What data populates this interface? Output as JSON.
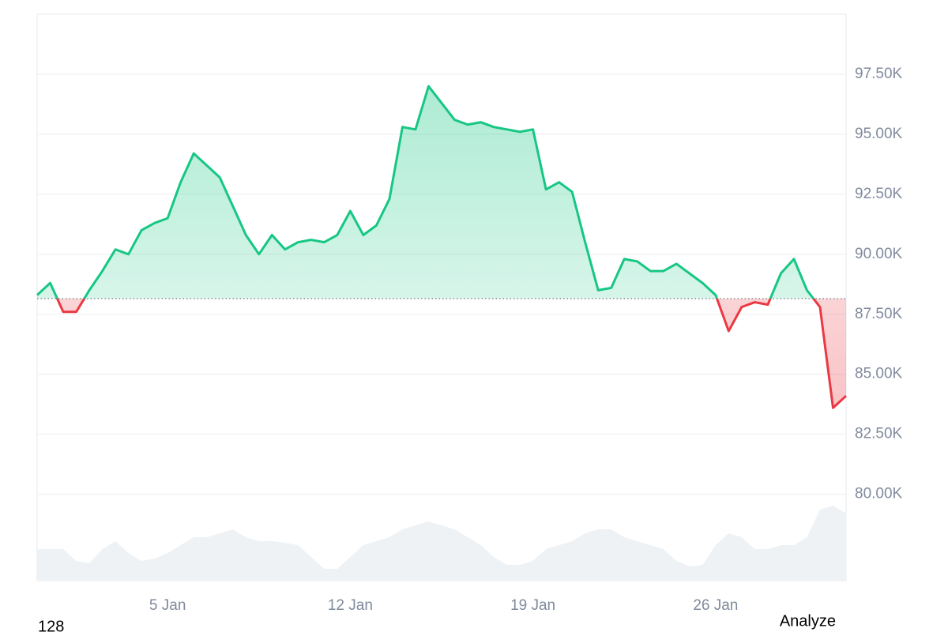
{
  "chart_data": {
    "type": "line",
    "categories": [
      null,
      null,
      null,
      null,
      null,
      null,
      null,
      null,
      null,
      null,
      "5 Jan",
      null,
      null,
      null,
      null,
      null,
      null,
      null,
      null,
      null,
      null,
      null,
      null,
      null,
      "12 Jan",
      null,
      null,
      null,
      null,
      null,
      null,
      null,
      null,
      null,
      null,
      null,
      null,
      null,
      "19 Jan",
      null,
      null,
      null,
      null,
      null,
      null,
      null,
      null,
      null,
      null,
      null,
      null,
      null,
      "26 Jan",
      null,
      null,
      null,
      null,
      null,
      null,
      null,
      null,
      null,
      null
    ],
    "series": [
      {
        "name": "Price",
        "color": "#16c784",
        "negative_color": "#ea3943",
        "values": [
          88300,
          88800,
          87600,
          87600,
          88500,
          89300,
          90200,
          90000,
          91000,
          91300,
          91500,
          93000,
          94200,
          93700,
          93200,
          92000,
          90800,
          90000,
          90800,
          90200,
          90500,
          90600,
          90500,
          90800,
          91800,
          90800,
          91200,
          92300,
          95300,
          95200,
          97000,
          96300,
          95600,
          95400,
          95500,
          95300,
          95200,
          95100,
          95200,
          92700,
          93000,
          92600,
          90500,
          88500,
          88600,
          89800,
          89700,
          89300,
          89300,
          89600,
          89200,
          88800,
          88300,
          86800,
          87800,
          88000,
          87900,
          89200,
          89800,
          88500,
          87800,
          83600,
          84100
        ]
      },
      {
        "name": "Volume",
        "color": "#eff2f5",
        "values": [
          40,
          40,
          40,
          25,
          22,
          40,
          50,
          35,
          25,
          28,
          35,
          45,
          55,
          55,
          60,
          65,
          55,
          50,
          50,
          48,
          45,
          30,
          15,
          15,
          30,
          45,
          50,
          55,
          65,
          70,
          75,
          70,
          65,
          55,
          45,
          30,
          20,
          20,
          25,
          40,
          45,
          50,
          60,
          65,
          65,
          55,
          50,
          45,
          40,
          25,
          18,
          20,
          45,
          60,
          55,
          40,
          40,
          45,
          45,
          55,
          90,
          95,
          85
        ]
      }
    ],
    "baseline": 88150,
    "ylim": [
      76400,
      100000
    ],
    "yticks": [
      {
        "value": 80000,
        "label": "80.00K"
      },
      {
        "value": 82500,
        "label": "82.50K"
      },
      {
        "value": 85000,
        "label": "85.00K"
      },
      {
        "value": 87500,
        "label": "87.50K"
      },
      {
        "value": 90000,
        "label": "90.00K"
      },
      {
        "value": 92500,
        "label": "92.50K"
      },
      {
        "value": 95000,
        "label": "95.00K"
      },
      {
        "value": 97500,
        "label": "97.50K"
      }
    ],
    "volume_lim": [
      0,
      100
    ],
    "grid": true,
    "footer_left": "128",
    "footer_right": "Analyze"
  }
}
